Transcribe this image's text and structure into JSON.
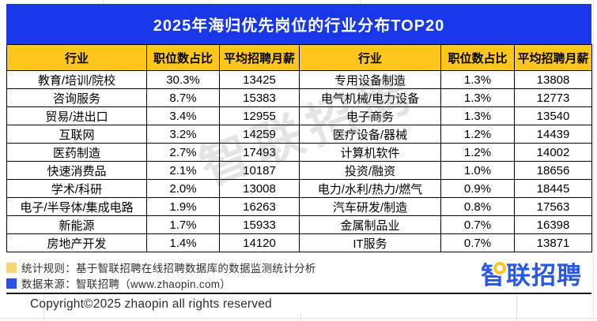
{
  "page": {
    "title": "2025年海归优先岗位的行业分布TOP20"
  },
  "chart_data": {
    "type": "table",
    "title": "2025年海归优先岗位的行业分布TOP20",
    "columns": [
      "行业",
      "职位数占比",
      "平均招聘月薪",
      "行业",
      "职位数占比",
      "平均招聘月薪"
    ],
    "left_rows": [
      [
        "教育/培训/院校",
        "30.3%",
        "13425"
      ],
      [
        "咨询服务",
        "8.7%",
        "15383"
      ],
      [
        "贸易/进出口",
        "3.4%",
        "12955"
      ],
      [
        "互联网",
        "3.2%",
        "14259"
      ],
      [
        "医药制造",
        "2.7%",
        "17493"
      ],
      [
        "快速消费品",
        "2.1%",
        "10187"
      ],
      [
        "学术/科研",
        "2.0%",
        "13008"
      ],
      [
        "电子/半导体/集成电路",
        "1.9%",
        "16263"
      ],
      [
        "新能源",
        "1.7%",
        "15933"
      ],
      [
        "房地产开发",
        "1.4%",
        "14120"
      ]
    ],
    "right_rows": [
      [
        "专用设备制造",
        "1.3%",
        "13808"
      ],
      [
        "电气机械/电力设备",
        "1.3%",
        "12773"
      ],
      [
        "电子商务",
        "1.3%",
        "13540"
      ],
      [
        "医疗设备/器械",
        "1.2%",
        "14439"
      ],
      [
        "计算机软件",
        "1.2%",
        "14002"
      ],
      [
        "投资/融资",
        "1.0%",
        "18656"
      ],
      [
        "电力/水利/热力/燃气",
        "0.9%",
        "18445"
      ],
      [
        "汽车研发/制造",
        "0.8%",
        "17563"
      ],
      [
        "金属制品业",
        "0.7%",
        "16398"
      ],
      [
        "IT服务",
        "0.7%",
        "13871"
      ]
    ]
  },
  "footnotes": {
    "rule_label": "统计规则：基于智联招聘在线招聘数据库的数据监测统计分析",
    "source_label": "数据来源：智联招聘（www.zhaopin.com）"
  },
  "watermark": "智联招聘",
  "logo": {
    "text": "智联招聘"
  },
  "copyright": "Copyright©2025 zhaopin all rights reserved",
  "colors": {
    "banner_blue": "#1737E9",
    "header_yellow": "#FFC61E",
    "logo_blue": "#2857EC",
    "note_yellow": "#F8D876",
    "note_blue": "#2B50DD",
    "pin_yellow": "#FFC61E"
  }
}
